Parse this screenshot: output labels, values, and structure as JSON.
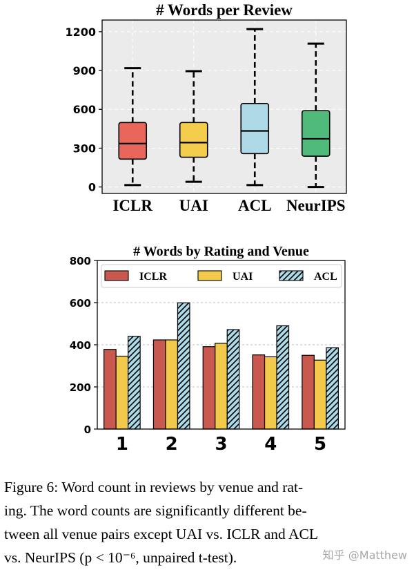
{
  "chart_data": [
    {
      "type": "boxplot",
      "title": "# Words per Review",
      "categories": [
        "ICLR",
        "UAI",
        "ACL",
        "NeurIPS"
      ],
      "yticks": [
        0,
        300,
        600,
        900,
        1200
      ],
      "ylim": [
        -50,
        1290
      ],
      "grid": true,
      "background": "#ebebeb",
      "boxes": [
        {
          "name": "ICLR",
          "whislo": 15,
          "q1": 215,
          "med": 335,
          "q3": 498,
          "whishi": 918,
          "color": "#e8665a"
        },
        {
          "name": "UAI",
          "whislo": 40,
          "q1": 230,
          "med": 343,
          "q3": 498,
          "whishi": 895,
          "color": "#f4cd4c"
        },
        {
          "name": "ACL",
          "whislo": 15,
          "q1": 258,
          "med": 433,
          "q3": 645,
          "whishi": 1220,
          "color": "#aed9e6"
        },
        {
          "name": "NeurIPS",
          "whislo": 0,
          "q1": 238,
          "med": 372,
          "q3": 590,
          "whishi": 1108,
          "color": "#4fba79"
        }
      ]
    },
    {
      "type": "bar",
      "title": "# Words by Rating and Venue",
      "categories": [
        "1",
        "2",
        "3",
        "4",
        "5"
      ],
      "yticks": [
        0,
        200,
        400,
        600,
        800
      ],
      "ylim": [
        0,
        800
      ],
      "grid": true,
      "legend_position": "top",
      "series": [
        {
          "name": "ICLR",
          "values": [
            378,
            423,
            391,
            352,
            350
          ],
          "color": "#c9584f",
          "hatch": false
        },
        {
          "name": "UAI",
          "values": [
            346,
            423,
            407,
            343,
            327
          ],
          "color": "#f2c94b",
          "hatch": false
        },
        {
          "name": "ACL",
          "values": [
            440,
            599,
            472,
            490,
            386
          ],
          "color": "#add8e6",
          "hatch": true
        }
      ]
    }
  ],
  "caption": {
    "lines": [
      "Figure 6:  Word count in reviews by venue and rat-",
      "ing.  The word counts are significantly different be-",
      "tween all venue pairs except UAI vs.  ICLR and ACL",
      "vs. NeurIPS (p < 10⁻⁶, unpaired t-test)."
    ]
  },
  "watermark": "知乎 @Matthew"
}
